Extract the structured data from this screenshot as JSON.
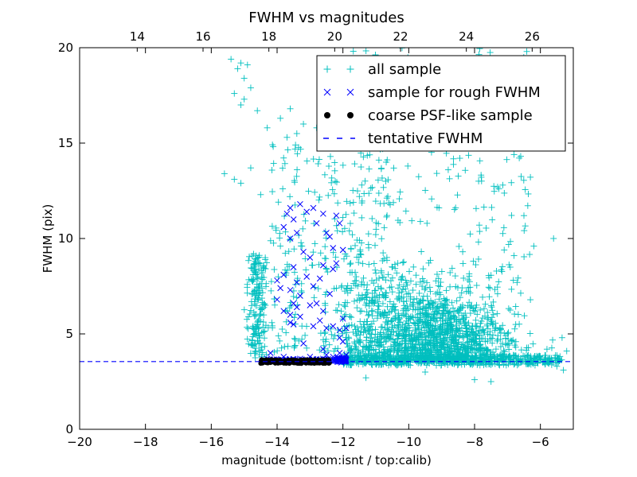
{
  "chart_data": {
    "type": "scatter",
    "title": "FWHM vs magnitudes",
    "xlabel": "magnitude (bottom:isnt / top:calib)",
    "ylabel": "FWHM (pix)",
    "xlim": [
      -20,
      -5
    ],
    "ylim": [
      0,
      20
    ],
    "x_ticks": [
      -20,
      -18,
      -16,
      -14,
      -12,
      -10,
      -8,
      -6
    ],
    "x_tick_labels": [
      "−20",
      "−18",
      "−16",
      "−14",
      "−12",
      "−10",
      "−8",
      "−6"
    ],
    "y_ticks": [
      0,
      5,
      10,
      15,
      20
    ],
    "y_tick_labels": [
      "0",
      "5",
      "10",
      "15",
      "20"
    ],
    "top_axis": {
      "offset": 32.25,
      "ticks": [
        14,
        16,
        18,
        20,
        22,
        24,
        26
      ],
      "tick_labels": [
        "14",
        "16",
        "18",
        "20",
        "22",
        "24",
        "26"
      ]
    },
    "grid": false,
    "legend_position": "top-right",
    "colors": {
      "all_sample": "#00bfbf",
      "rough_sample": "#0000ff",
      "psf_sample": "#000000",
      "tentative_line": "#0000ff"
    },
    "series": [
      {
        "name": "all sample",
        "marker": "plus",
        "generator": {
          "seed": 12345
        },
        "points": [
          [
            -15.4,
            19.4
          ],
          [
            -15.1,
            19.2
          ],
          [
            -14.9,
            19.1
          ],
          [
            -15.2,
            18.9
          ],
          [
            -15.0,
            18.4
          ],
          [
            -14.8,
            17.9
          ],
          [
            -15.3,
            17.6
          ],
          [
            -15.0,
            17.3
          ],
          [
            -15.1,
            17.0
          ],
          [
            -14.6,
            16.7
          ],
          [
            -13.6,
            16.8
          ],
          [
            -13.9,
            16.3
          ],
          [
            -13.2,
            16.0
          ],
          [
            -13.7,
            15.3
          ],
          [
            -13.4,
            15.5
          ],
          [
            -12.8,
            15.8
          ],
          [
            -12.5,
            16.6
          ],
          [
            -14.3,
            15.8
          ],
          [
            -14.8,
            13.7
          ],
          [
            -15.6,
            13.4
          ],
          [
            -15.3,
            13.1
          ],
          [
            -14.5,
            12.3
          ],
          [
            -15.1,
            12.9
          ],
          [
            -11.2,
            16.2
          ],
          [
            -10.5,
            17.5
          ],
          [
            -9.2,
            18.9
          ],
          [
            -8.3,
            18.3
          ],
          [
            -7.5,
            18.2
          ],
          [
            -8.0,
            17.6
          ],
          [
            -9.6,
            16.8
          ],
          [
            -10.1,
            15.7
          ],
          [
            -7.9,
            15.5
          ],
          [
            -6.8,
            14.4
          ],
          [
            -8.8,
            13.6
          ],
          [
            -10.7,
            13.0
          ],
          [
            -7.3,
            12.7
          ],
          [
            -6.5,
            11.2
          ],
          [
            -11.5,
            12.2
          ],
          [
            -12.0,
            11.1
          ],
          [
            -7.1,
            9.4
          ],
          [
            -6.2,
            9.6
          ],
          [
            -5.6,
            10.0
          ],
          [
            -7.3,
            7.1
          ],
          [
            -6.8,
            9.1
          ],
          [
            -11.3,
            2.7
          ],
          [
            -9.5,
            3.0
          ],
          [
            -8.0,
            2.6
          ],
          [
            -7.5,
            2.5
          ],
          [
            -5.5,
            3.3
          ],
          [
            -5.3,
            3.1
          ],
          [
            -5.7,
            3.6
          ],
          [
            -5.8,
            4.2
          ],
          [
            -5.2,
            4.1
          ]
        ]
      },
      {
        "name": "sample for rough FWHM",
        "marker": "x",
        "points": [
          [
            -13.6,
            11.6
          ],
          [
            -13.7,
            11.3
          ],
          [
            -13.5,
            11.0
          ],
          [
            -13.8,
            10.6
          ],
          [
            -13.3,
            11.8
          ],
          [
            -13.1,
            11.4
          ],
          [
            -13.4,
            10.3
          ],
          [
            -13.6,
            10.0
          ],
          [
            -13.2,
            9.3
          ],
          [
            -12.9,
            11.6
          ],
          [
            -12.6,
            11.3
          ],
          [
            -12.8,
            10.8
          ],
          [
            -12.5,
            10.3
          ],
          [
            -12.2,
            11.2
          ],
          [
            -12.1,
            10.8
          ],
          [
            -12.4,
            10.1
          ],
          [
            -13.0,
            9.0
          ],
          [
            -12.6,
            8.6
          ],
          [
            -13.5,
            8.5
          ],
          [
            -13.8,
            8.1
          ],
          [
            -14.0,
            7.8
          ],
          [
            -13.4,
            7.7
          ],
          [
            -13.6,
            7.3
          ],
          [
            -13.9,
            7.4
          ],
          [
            -13.3,
            7.0
          ],
          [
            -13.5,
            6.6
          ],
          [
            -13.1,
            8.0
          ],
          [
            -12.9,
            7.5
          ],
          [
            -12.7,
            7.9
          ],
          [
            -12.3,
            8.4
          ],
          [
            -12.2,
            8.7
          ],
          [
            -12.4,
            7.1
          ],
          [
            -12.8,
            6.6
          ],
          [
            -13.0,
            6.5
          ],
          [
            -12.6,
            6.2
          ],
          [
            -13.4,
            6.4
          ],
          [
            -13.6,
            6.0
          ],
          [
            -13.8,
            6.2
          ],
          [
            -12.3,
            9.5
          ],
          [
            -12.0,
            9.4
          ],
          [
            -14.0,
            6.8
          ],
          [
            -13.6,
            5.6
          ],
          [
            -13.3,
            5.9
          ],
          [
            -13.5,
            5.5
          ],
          [
            -12.7,
            5.7
          ],
          [
            -12.9,
            5.4
          ],
          [
            -12.5,
            5.3
          ],
          [
            -12.3,
            5.4
          ],
          [
            -12.1,
            5.2
          ],
          [
            -12.0,
            5.8
          ],
          [
            -11.9,
            5.3
          ],
          [
            -12.1,
            4.8
          ],
          [
            -12.0,
            4.6
          ],
          [
            -13.2,
            4.5
          ],
          [
            -14.2,
            4.0
          ],
          [
            -12.6,
            4.2
          ],
          [
            -12.1,
            4.0
          ],
          [
            -11.9,
            3.9
          ],
          [
            -12.3,
            3.8
          ],
          [
            -14.3,
            3.7
          ],
          [
            -13.8,
            3.8
          ],
          [
            -13.0,
            3.8
          ],
          [
            -12.5,
            3.9
          ],
          [
            -14.4,
            3.65
          ],
          [
            -14.1,
            3.66
          ],
          [
            -13.5,
            3.68
          ],
          [
            -13.3,
            3.7
          ],
          [
            -12.9,
            3.68
          ],
          [
            -12.6,
            3.7
          ],
          [
            -12.2,
            3.65
          ],
          [
            -12.0,
            3.6
          ],
          [
            -11.95,
            3.58
          ],
          [
            -12.1,
            3.55
          ],
          [
            -11.9,
            3.62
          ],
          [
            -12.05,
            3.5
          ]
        ]
      },
      {
        "name": "coarse PSF-like sample",
        "marker": "circle",
        "x_range": [
          -14.5,
          -12.4
        ],
        "y_range": [
          3.45,
          3.65
        ],
        "count": 240
      },
      {
        "name": "tentative FWHM",
        "marker": "dashed-line",
        "y": 3.55
      }
    ]
  },
  "legend": {
    "items": [
      {
        "label": "all sample",
        "marker": "plus"
      },
      {
        "label": "sample for rough FWHM",
        "marker": "x"
      },
      {
        "label": "coarse PSF-like sample",
        "marker": "circle"
      },
      {
        "label": "tentative FWHM",
        "marker": "dashed-line"
      }
    ]
  }
}
